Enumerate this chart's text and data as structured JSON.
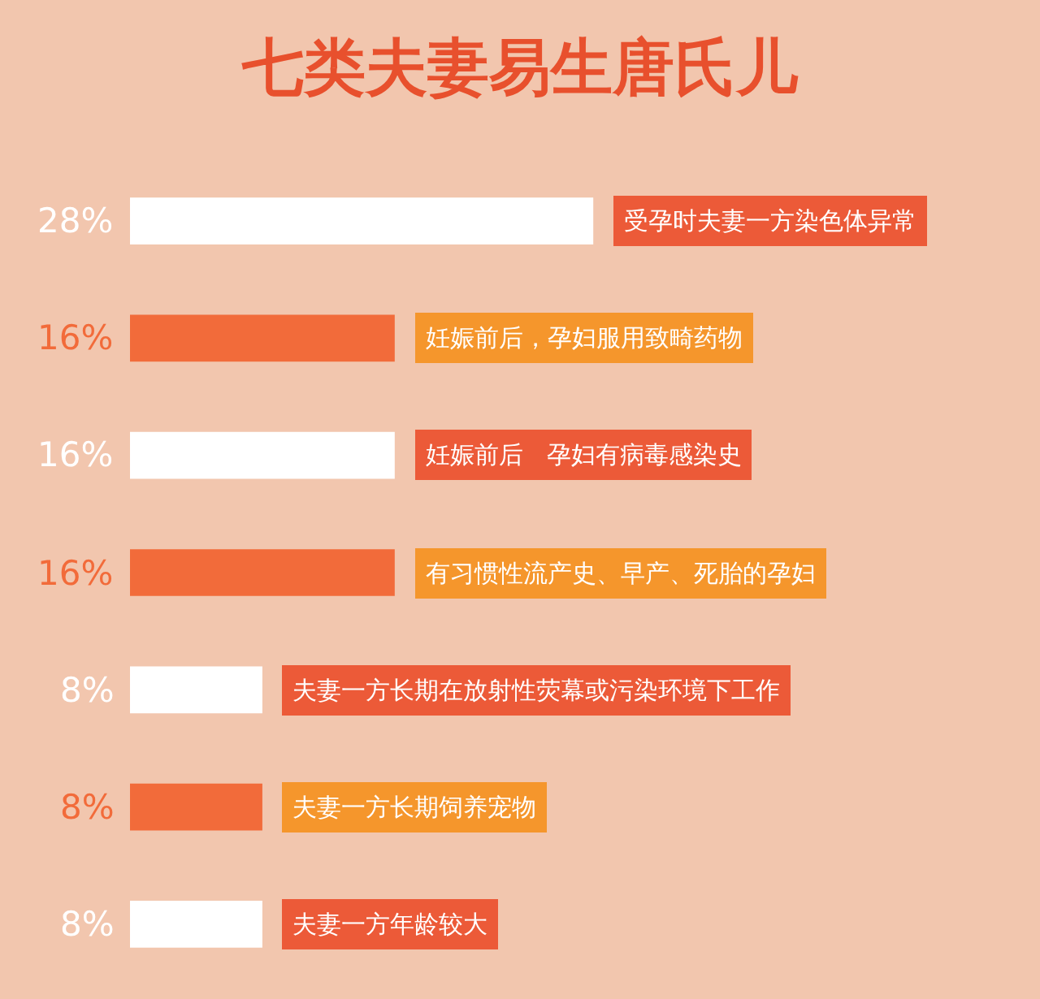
{
  "chart_data": {
    "type": "bar",
    "orientation": "horizontal",
    "title": "七类夫妻易生唐氏儿",
    "categories": [
      "受孕时夫妻一方染色体异常",
      "妊娠前后，孕妇服用致畸药物",
      "妊娠前后   孕妇有病毒感染史",
      "有习惯性流产史、早产、死胎的孕妇",
      "夫妻一方长期在放射性荧幕或污染环境下工作",
      "夫妻一方长期饲养宠物",
      "夫妻一方年龄较大"
    ],
    "values": [
      28,
      16,
      16,
      16,
      8,
      8,
      8
    ],
    "colors": [
      "#ffffff",
      "#f26b3a",
      "#ffffff",
      "#f26b3a",
      "#ffffff",
      "#f26b3a",
      "#ffffff"
    ],
    "value_labels": [
      "28%",
      "16%",
      "16%",
      "16%",
      "8%",
      "8%",
      "8%"
    ],
    "xlim": [
      0,
      55
    ],
    "tick_labels": false,
    "grid": false,
    "legend": false
  }
}
